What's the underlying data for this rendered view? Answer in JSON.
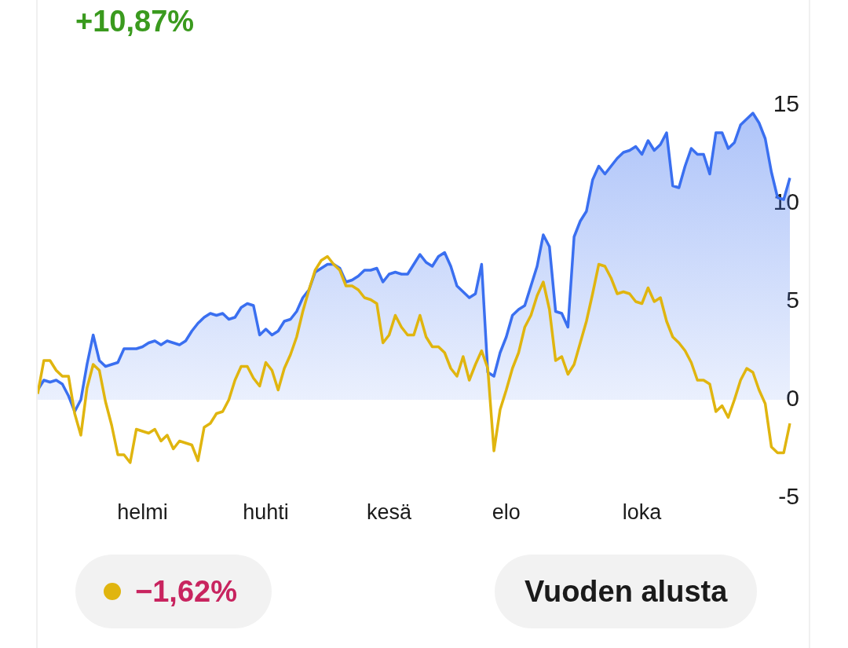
{
  "chart_data": {
    "type": "line",
    "title": "+10,87%",
    "annotations": [
      "−1,62%",
      "Vuoden alusta"
    ],
    "categories": [
      null,
      null,
      null,
      null,
      null,
      null,
      null,
      null,
      null,
      null,
      null,
      null,
      null,
      null,
      null,
      null,
      null,
      "helmi",
      null,
      null,
      null,
      null,
      null,
      null,
      null,
      null,
      null,
      null,
      null,
      null,
      null,
      null,
      null,
      null,
      null,
      null,
      null,
      "huhti",
      null,
      null,
      null,
      null,
      null,
      null,
      null,
      null,
      null,
      null,
      null,
      null,
      null,
      null,
      null,
      null,
      null,
      null,
      null,
      "kesä",
      null,
      null,
      null,
      null,
      null,
      null,
      null,
      null,
      null,
      null,
      null,
      null,
      null,
      null,
      null,
      null,
      null,
      null,
      "elo",
      null,
      null,
      null,
      null,
      null,
      null,
      null,
      null,
      null,
      null,
      null,
      null,
      null,
      null,
      null,
      null,
      null,
      null,
      null,
      null,
      null,
      "loka",
      null,
      null,
      null,
      null,
      null,
      null,
      null,
      null,
      null,
      null,
      null,
      null,
      null,
      null,
      null,
      null,
      null,
      null,
      null,
      null,
      null,
      null,
      null,
      null
    ],
    "ylim": [
      -5,
      15
    ],
    "yticks": [
      -5,
      0,
      5,
      10,
      15
    ],
    "series": [
      {
        "type": "area",
        "color": "#3a6ff0",
        "values": [
          0.5,
          1.0,
          0.9,
          1.0,
          0.8,
          0.2,
          -0.6,
          0.0,
          1.8,
          3.3,
          2.0,
          1.7,
          1.8,
          1.9,
          2.6,
          2.6,
          2.6,
          2.7,
          2.9,
          3.0,
          2.8,
          3.0,
          2.9,
          2.8,
          3.0,
          3.5,
          3.9,
          4.2,
          4.4,
          4.3,
          4.4,
          4.1,
          4.2,
          4.7,
          4.9,
          4.8,
          3.3,
          3.6,
          3.3,
          3.5,
          4.0,
          4.1,
          4.5,
          5.2,
          5.6,
          6.5,
          6.7,
          6.9,
          6.9,
          6.7,
          6.0,
          6.1,
          6.3,
          6.6,
          6.6,
          6.7,
          6.0,
          6.4,
          6.5,
          6.4,
          6.4,
          6.9,
          7.4,
          7.0,
          6.8,
          7.3,
          7.5,
          6.8,
          5.8,
          5.5,
          5.2,
          5.4,
          6.9,
          1.4,
          1.2,
          2.4,
          3.2,
          4.3,
          4.6,
          4.8,
          5.8,
          6.8,
          8.4,
          7.8,
          4.5,
          4.4,
          3.7,
          8.3,
          9.1,
          9.6,
          11.2,
          11.9,
          11.5,
          11.9,
          12.3,
          12.6,
          12.7,
          12.9,
          12.5,
          13.2,
          12.7,
          13.0,
          13.6,
          10.9,
          10.8,
          11.9,
          12.8,
          12.5,
          12.5,
          11.5,
          13.6,
          13.6,
          12.8,
          13.1,
          14.0,
          14.3,
          14.6,
          14.1,
          13.3,
          11.6,
          10.3,
          10.2,
          11.3
        ]
      },
      {
        "type": "line",
        "color": "#e0b50f",
        "values": [
          0.3,
          2.0,
          2.0,
          1.5,
          1.2,
          1.2,
          -0.7,
          -1.8,
          0.6,
          1.8,
          1.5,
          -0.1,
          -1.3,
          -2.8,
          -2.8,
          -3.2,
          -1.5,
          -1.6,
          -1.7,
          -1.5,
          -2.1,
          -1.8,
          -2.5,
          -2.1,
          -2.2,
          -2.3,
          -3.1,
          -1.4,
          -1.2,
          -0.7,
          -0.6,
          0.0,
          1.0,
          1.7,
          1.7,
          1.1,
          0.7,
          1.9,
          1.5,
          0.5,
          1.6,
          2.3,
          3.2,
          4.5,
          5.6,
          6.6,
          7.1,
          7.3,
          6.9,
          6.6,
          5.8,
          5.8,
          5.6,
          5.2,
          5.1,
          4.9,
          2.9,
          3.3,
          4.3,
          3.7,
          3.3,
          3.3,
          4.3,
          3.2,
          2.7,
          2.7,
          2.4,
          1.6,
          1.2,
          2.2,
          1.0,
          1.8,
          2.5,
          1.6,
          -2.6,
          -0.5,
          0.5,
          1.6,
          2.4,
          3.7,
          4.3,
          5.3,
          6.0,
          4.6,
          2.0,
          2.2,
          1.3,
          1.8,
          2.9,
          4.0,
          5.4,
          6.9,
          6.8,
          6.2,
          5.4,
          5.5,
          5.4,
          5.0,
          4.9,
          5.7,
          5.0,
          5.2,
          4.0,
          3.2,
          2.9,
          2.5,
          1.9,
          1.0,
          1.0,
          0.8,
          -0.6,
          -0.3,
          -0.9,
          0.0,
          1.0,
          1.6,
          1.4,
          0.5,
          -0.2,
          -2.4,
          -2.7,
          -2.7,
          -1.2
        ]
      }
    ]
  }
}
